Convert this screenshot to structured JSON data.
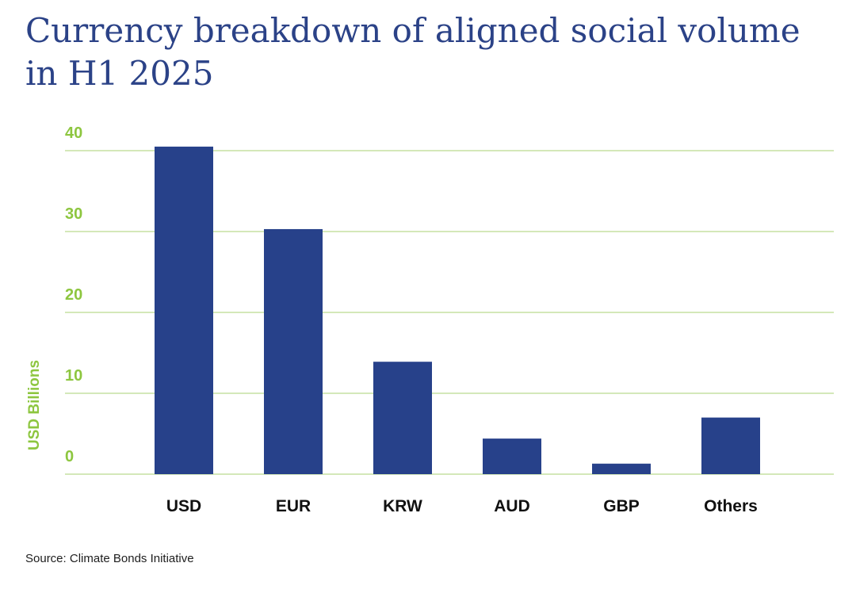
{
  "title_lines": [
    "Currency breakdown of aligned social volume",
    "in H1 2025"
  ],
  "source": "Source: Climate Bonds Initiative",
  "colors": {
    "bar": "#27418a",
    "grid": "#c6e0a2",
    "axis_text": "#8dc63f",
    "category_text": "#111111",
    "title": "#2b4287"
  },
  "chart_data": {
    "type": "bar",
    "title": "Currency breakdown of aligned social volume in H1 2025",
    "xlabel": "",
    "ylabel": "USD Billions",
    "categories": [
      "USD",
      "EUR",
      "KRW",
      "AUD",
      "GBP",
      "Others"
    ],
    "values": [
      40.5,
      30.3,
      13.9,
      4.4,
      1.3,
      7.0
    ],
    "ylim": [
      0,
      40
    ],
    "yticks": [
      0,
      10,
      20,
      30,
      40
    ],
    "grid": true
  }
}
